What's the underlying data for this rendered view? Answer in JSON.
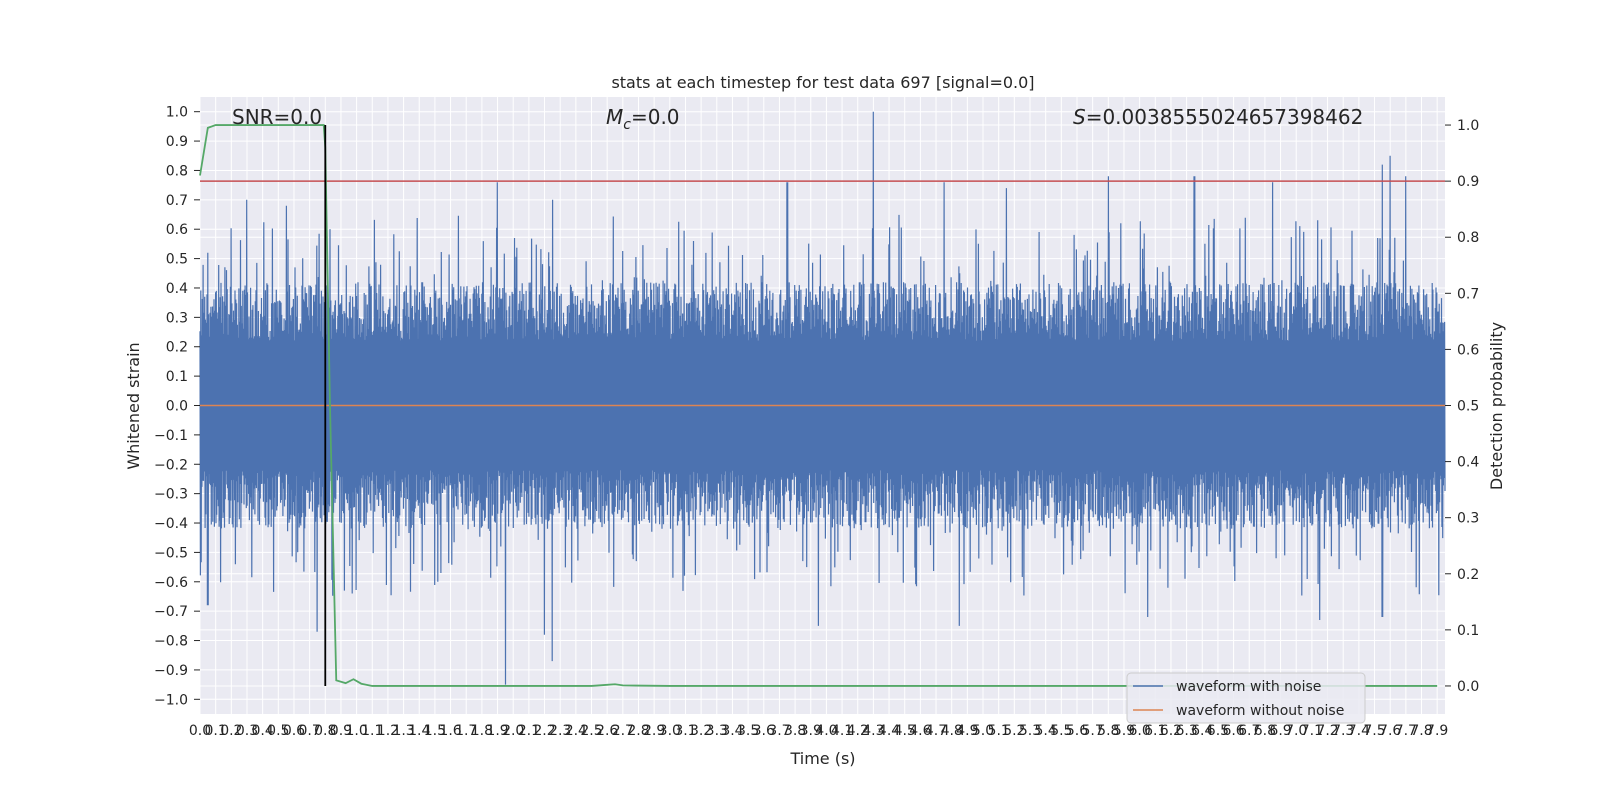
{
  "chart_data": {
    "type": "line",
    "title": "stats at each timestep for test data 697 [signal=0.0]",
    "xlabel": "Time (s)",
    "ylabel": "Whitened strain",
    "ylabel_right": "Detection probability",
    "xlim": [
      0.0,
      7.95
    ],
    "ylim": [
      -1.05,
      1.05
    ],
    "ylim_right": [
      -0.05,
      1.05
    ],
    "grid": true,
    "legend_position": "lower-right",
    "annotations": {
      "snr": "SNR=0.0",
      "mc_symbol": "M",
      "mc_sub": "c",
      "mc_value": "=0.0",
      "s_symbol": "S",
      "s_value": "=0.0038555024657398462"
    },
    "x_tick_labels": [
      "0.0",
      "0.1",
      "0.2",
      "0.3",
      "0.4",
      "0.5",
      "0.6",
      "0.7",
      "0.8",
      "0.9",
      "1.0",
      "1.1",
      "1.2",
      "1.3",
      "1.4",
      "1.5",
      "1.6",
      "1.7",
      "1.8",
      "1.9",
      "2.0",
      "2.1",
      "2.2",
      "2.3",
      "2.4",
      "2.5",
      "2.6",
      "2.7",
      "2.8",
      "2.9",
      "3.0",
      "3.1",
      "3.2",
      "3.3",
      "3.4",
      "3.5",
      "3.6",
      "3.7",
      "3.8",
      "3.9",
      "4.0",
      "4.1",
      "4.2",
      "4.3",
      "4.4",
      "4.5",
      "4.6",
      "4.7",
      "4.8",
      "4.9",
      "5.0",
      "5.1",
      "5.2",
      "5.3",
      "5.4",
      "5.5",
      "5.6",
      "5.7",
      "5.8",
      "5.9",
      "6.0",
      "6.1",
      "6.2",
      "6.3",
      "6.4",
      "6.5",
      "6.6",
      "6.7",
      "6.8",
      "6.9",
      "7.0",
      "7.1",
      "7.2",
      "7.3",
      "7.4",
      "7.5",
      "7.6",
      "7.7",
      "7.8",
      "7.9"
    ],
    "y_tick_labels": [
      "1.0",
      "0.9",
      "0.8",
      "0.7",
      "0.6",
      "0.5",
      "0.4",
      "0.3",
      "0.2",
      "0.1",
      "0.0",
      "−0.1",
      "−0.2",
      "−0.3",
      "−0.4",
      "−0.5",
      "−0.6",
      "−0.7",
      "−0.8",
      "−0.9",
      "−1.0"
    ],
    "y_right_tick_labels": [
      "1.0",
      "0.9",
      "0.8",
      "0.7",
      "0.6",
      "0.5",
      "0.4",
      "0.3",
      "0.2",
      "0.1",
      "0.0"
    ],
    "series": [
      {
        "name": "waveform with noise",
        "color": "#4c72b0",
        "note": "dense noise, approx range -0.95 to 1.0",
        "peaks": [
          [
            0.05,
            0.52
          ],
          [
            0.3,
            0.7
          ],
          [
            0.55,
            0.68
          ],
          [
            0.8,
            0.62
          ],
          [
            1.9,
            0.76
          ],
          [
            2.25,
            0.7
          ],
          [
            3.75,
            0.76
          ],
          [
            4.3,
            1.0
          ],
          [
            4.75,
            0.76
          ],
          [
            5.15,
            0.74
          ],
          [
            5.8,
            0.78
          ],
          [
            6.35,
            0.78
          ],
          [
            6.85,
            0.76
          ],
          [
            7.55,
            0.82
          ],
          [
            7.6,
            0.85
          ],
          [
            7.7,
            0.78
          ]
        ],
        "troughs": [
          [
            0.05,
            -0.68
          ],
          [
            0.75,
            -0.77
          ],
          [
            1.95,
            -0.95
          ],
          [
            2.2,
            -0.78
          ],
          [
            2.25,
            -0.87
          ],
          [
            3.95,
            -0.75
          ],
          [
            4.85,
            -0.75
          ],
          [
            6.05,
            -0.72
          ],
          [
            7.15,
            -0.73
          ],
          [
            7.55,
            -0.72
          ]
        ]
      },
      {
        "name": "waveform without noise",
        "color": "#dd8452",
        "x": [
          0.0,
          7.95
        ],
        "y": [
          0.0,
          0.0
        ]
      },
      {
        "axis": "right",
        "color": "#55a868",
        "x": [
          0.0,
          0.05,
          0.1,
          0.2,
          0.4,
          0.6,
          0.7,
          0.79,
          0.8,
          0.83,
          0.87,
          0.93,
          0.98,
          1.03,
          1.1,
          1.5,
          2.0,
          2.5,
          2.6,
          2.65,
          2.7,
          3.0,
          4.0,
          5.0,
          6.0,
          7.0,
          7.9
        ],
        "y": [
          0.91,
          0.995,
          1.0,
          1.0,
          1.0,
          1.0,
          1.0,
          1.0,
          0.96,
          0.5,
          0.01,
          0.005,
          0.012,
          0.004,
          0.0,
          0.0,
          0.0,
          0.0,
          0.002,
          0.003,
          0.001,
          0.0,
          0.0,
          0.0,
          0.0,
          0.0,
          0.0
        ]
      }
    ],
    "threshold_line": {
      "axis": "right",
      "value": 0.9,
      "color": "#c44e52"
    },
    "marker_line": {
      "x": 0.8,
      "color": "#000000"
    }
  }
}
